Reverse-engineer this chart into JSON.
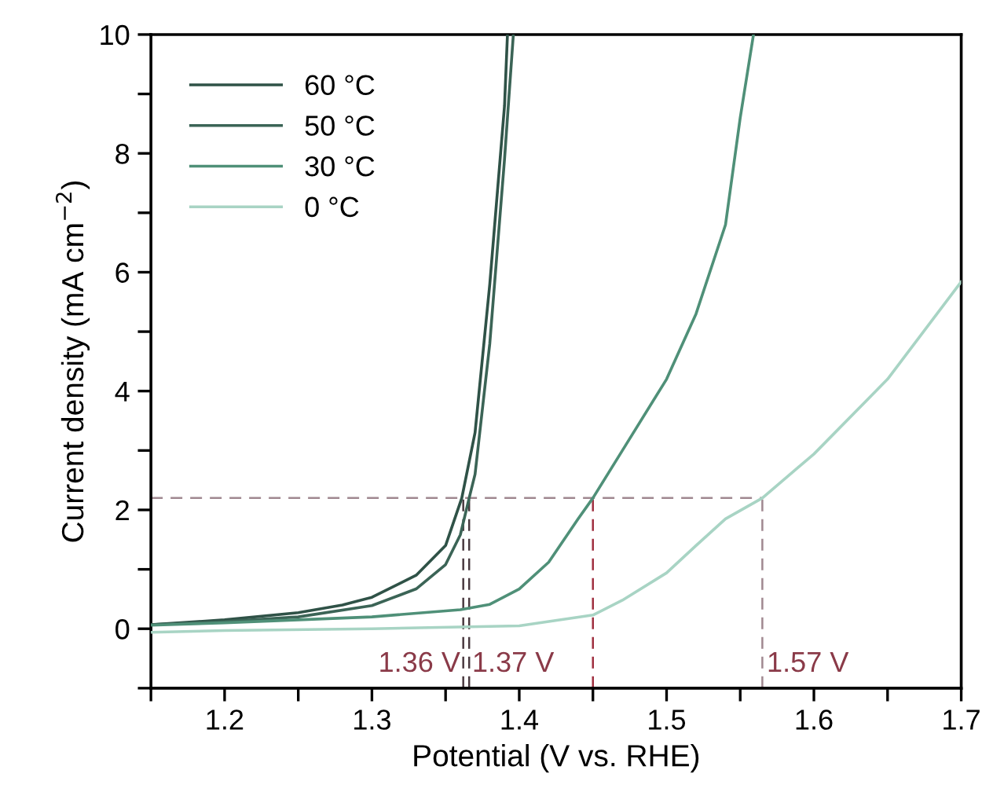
{
  "chart_data": {
    "type": "line",
    "xlabel": "Potential (V vs. RHE)",
    "ylabel": "Current density (mA cm$^{−2}$)",
    "xlim": [
      1.15,
      1.7
    ],
    "ylim": [
      -1,
      10
    ],
    "xticks": [
      {
        "value": 1.15,
        "label": null
      },
      1.2,
      {
        "value": 1.25,
        "label": null
      },
      1.3,
      {
        "value": 1.35,
        "label": null
      },
      1.4,
      {
        "value": 1.45,
        "label": null
      },
      1.5,
      {
        "value": 1.55,
        "label": null
      },
      1.6,
      {
        "value": 1.65,
        "label": null
      },
      1.7
    ],
    "yticks": [
      {
        "value": -1,
        "label": null
      },
      0,
      {
        "value": 1,
        "label": null
      },
      2,
      {
        "value": 3,
        "label": null
      },
      4,
      {
        "value": 5,
        "label": null
      },
      6,
      {
        "value": 7,
        "label": null
      },
      8,
      {
        "value": 9,
        "label": null
      },
      10
    ],
    "grid": false,
    "legend": "top left",
    "marker": "none",
    "line_style": "solid",
    "series": [
      {
        "name": "60 °C",
        "color": "#2f5247",
        "x": [
          1.15,
          1.2,
          1.25,
          1.28,
          1.3,
          1.33,
          1.35,
          1.361,
          1.37,
          1.38,
          1.39,
          1.392
        ],
        "values": [
          0.07,
          0.15,
          0.27,
          0.4,
          0.53,
          0.9,
          1.4,
          2.2,
          3.3,
          5.8,
          8.8,
          10
        ]
      },
      {
        "name": "50 °C",
        "color": "#3b6456",
        "x": [
          1.15,
          1.2,
          1.25,
          1.3,
          1.33,
          1.35,
          1.36,
          1.366,
          1.37,
          1.38,
          1.39,
          1.396
        ],
        "values": [
          0.07,
          0.12,
          0.2,
          0.39,
          0.67,
          1.08,
          1.58,
          2.2,
          2.6,
          4.8,
          7.9,
          10
        ]
      },
      {
        "name": "30 °C",
        "color": "#4f9078",
        "x": [
          1.15,
          1.2,
          1.3,
          1.36,
          1.38,
          1.4,
          1.42,
          1.44,
          1.45,
          1.47,
          1.5,
          1.52,
          1.54,
          1.55,
          1.559
        ],
        "values": [
          0.06,
          0.1,
          0.2,
          0.32,
          0.41,
          0.67,
          1.12,
          1.85,
          2.2,
          3.0,
          4.2,
          5.3,
          6.8,
          8.6,
          10
        ]
      },
      {
        "name": "0 °C",
        "color": "#a8d4c4",
        "x": [
          1.15,
          1.2,
          1.3,
          1.4,
          1.45,
          1.47,
          1.5,
          1.52,
          1.54,
          1.565,
          1.6,
          1.65,
          1.7
        ],
        "values": [
          -0.06,
          -0.03,
          0.0,
          0.05,
          0.23,
          0.48,
          0.94,
          1.4,
          1.85,
          2.2,
          2.94,
          4.2,
          5.84
        ]
      }
    ],
    "ref_lines": [
      {
        "axis": "y",
        "value": 2.2,
        "color": "#a08890",
        "line_style": "dashed"
      },
      {
        "axis": "x",
        "value": 1.362,
        "color": "#4a3a40",
        "line_style": "dashed"
      },
      {
        "axis": "x",
        "value": 1.366,
        "color": "#4a3a40",
        "line_style": "dashed"
      },
      {
        "axis": "x",
        "value": 1.45,
        "color": "#a03040",
        "line_style": "dashed"
      },
      {
        "axis": "x",
        "value": 1.565,
        "color": "#a08890",
        "line_style": "dashed"
      }
    ],
    "annotations": [
      {
        "text": "1.36 V",
        "x": 1.36,
        "y": -0.6
      },
      {
        "text": "1.37 V",
        "x": 1.368,
        "y": -0.6
      },
      {
        "text": "1.57 V",
        "x": 1.568,
        "y": -0.6
      }
    ]
  }
}
